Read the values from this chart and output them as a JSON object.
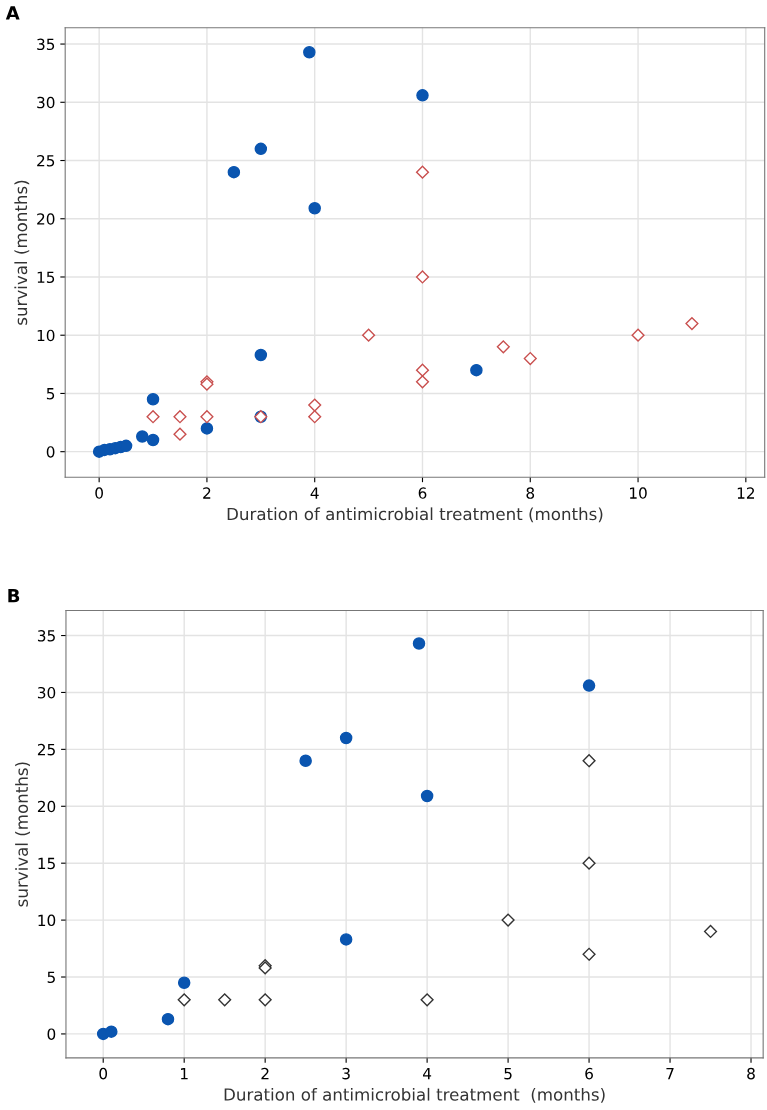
{
  "chart_data": [
    {
      "type": "scatter",
      "title": "A",
      "xlabel": "Duration of antimicrobial treatment (months)",
      "ylabel": "survival (months)",
      "xlim": [
        -0.63,
        12.35
      ],
      "xticks": [
        0,
        2,
        4,
        6,
        8,
        10,
        12
      ],
      "ylim": [
        -2.2,
        36.4
      ],
      "yticks": [
        0,
        5,
        10,
        15,
        20,
        25,
        30,
        35
      ],
      "grid": true,
      "series": [
        {
          "color": "#0a55b0",
          "marker": "circle",
          "x": [
            0,
            0.1,
            0.2,
            0.3,
            0.4,
            0.5,
            0.8,
            1,
            1,
            2,
            2.5,
            3,
            3,
            3,
            3.9,
            4,
            6,
            7
          ],
          "values": [
            0,
            0.15,
            0.2,
            0.3,
            0.4,
            0.5,
            1.3,
            4.5,
            1.0,
            2,
            24,
            26,
            8.3,
            3,
            34.3,
            20.9,
            30.6,
            7
          ]
        },
        {
          "color": "#c9504f",
          "marker": "diamond",
          "x": [
            1,
            1.5,
            1.5,
            2,
            2,
            2,
            3,
            4,
            4,
            5,
            6,
            6,
            6,
            6,
            7.5,
            8,
            10,
            11
          ],
          "values": [
            3,
            3,
            1.5,
            6,
            5.8,
            3,
            3,
            4,
            3,
            10,
            24,
            15,
            7,
            6,
            9,
            8,
            10,
            11
          ]
        }
      ]
    },
    {
      "type": "scatter",
      "title": "B",
      "xlabel": "Duration of antimicrobial treatment  (months)",
      "ylabel": "survival (months)",
      "xlim": [
        -0.46,
        8.15
      ],
      "xticks": [
        0,
        1,
        2,
        3,
        4,
        5,
        6,
        7,
        8
      ],
      "ylim": [
        -2.1,
        37.2
      ],
      "yticks": [
        0,
        5,
        10,
        15,
        20,
        25,
        30,
        35
      ],
      "grid": true,
      "series": [
        {
          "color": "#0a55b0",
          "marker": "circle",
          "x": [
            0,
            0.1,
            0.8,
            1,
            2.5,
            3,
            3,
            3.9,
            4,
            6
          ],
          "values": [
            0,
            0.2,
            1.3,
            4.5,
            24,
            26,
            8.3,
            34.3,
            20.9,
            30.6
          ]
        },
        {
          "color": "#333333",
          "marker": "diamond",
          "x": [
            1,
            1.5,
            2,
            2,
            2,
            4,
            5,
            6,
            6,
            6,
            7.5
          ],
          "values": [
            3,
            3,
            6,
            5.8,
            3,
            3,
            10,
            24,
            15,
            7,
            9
          ]
        }
      ]
    }
  ]
}
